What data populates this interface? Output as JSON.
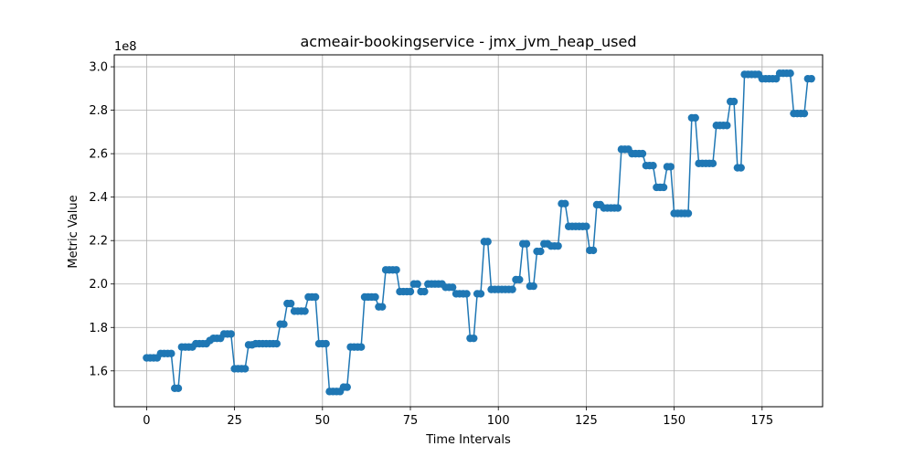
{
  "chart_data": {
    "type": "line",
    "title": "acmeair-bookingservice - jmx_jvm_heap_used",
    "xlabel": "Time Intervals",
    "ylabel": "Metric Value",
    "y_scale_label": "1e8",
    "xlim": [
      -9.2,
      192.2
    ],
    "ylim": [
      1.435,
      3.055
    ],
    "x_ticks": [
      0,
      25,
      50,
      75,
      100,
      125,
      150,
      175
    ],
    "x_tick_labels": [
      "0",
      "25",
      "50",
      "75",
      "100",
      "125",
      "150",
      "175"
    ],
    "y_ticks": [
      1.6,
      1.8,
      2.0,
      2.2,
      2.4,
      2.6,
      2.8,
      3.0
    ],
    "y_tick_labels": [
      "1.6",
      "1.8",
      "2.0",
      "2.2",
      "2.4",
      "2.6",
      "2.8",
      "3.0"
    ],
    "grid": true,
    "series": [
      {
        "name": "jmx_jvm_heap_used",
        "color": "#1f77b4",
        "marker": "circle",
        "values": [
          1.66,
          1.66,
          1.66,
          1.66,
          1.68,
          1.68,
          1.68,
          1.68,
          1.52,
          1.52,
          1.71,
          1.71,
          1.71,
          1.71,
          1.725,
          1.725,
          1.725,
          1.725,
          1.74,
          1.75,
          1.75,
          1.75,
          1.77,
          1.77,
          1.77,
          1.61,
          1.61,
          1.61,
          1.61,
          1.72,
          1.72,
          1.725,
          1.725,
          1.725,
          1.725,
          1.725,
          1.725,
          1.725,
          1.815,
          1.815,
          1.91,
          1.91,
          1.875,
          1.875,
          1.875,
          1.875,
          1.94,
          1.94,
          1.94,
          1.725,
          1.725,
          1.725,
          1.505,
          1.505,
          1.505,
          1.505,
          1.525,
          1.525,
          1.71,
          1.71,
          1.71,
          1.71,
          1.94,
          1.94,
          1.94,
          1.94,
          1.895,
          1.895,
          2.065,
          2.065,
          2.065,
          2.065,
          1.965,
          1.965,
          1.965,
          1.965,
          2.0,
          2.0,
          1.965,
          1.965,
          2.0,
          2.0,
          2.0,
          2.0,
          2.0,
          1.985,
          1.985,
          1.985,
          1.955,
          1.955,
          1.955,
          1.955,
          1.75,
          1.75,
          1.955,
          1.955,
          2.195,
          2.195,
          1.975,
          1.975,
          1.975,
          1.975,
          1.975,
          1.975,
          1.975,
          2.02,
          2.02,
          2.185,
          2.185,
          1.99,
          1.99,
          2.15,
          2.15,
          2.185,
          2.185,
          2.175,
          2.175,
          2.175,
          2.37,
          2.37,
          2.265,
          2.265,
          2.265,
          2.265,
          2.265,
          2.265,
          2.155,
          2.155,
          2.365,
          2.365,
          2.35,
          2.35,
          2.35,
          2.35,
          2.35,
          2.62,
          2.62,
          2.62,
          2.6,
          2.6,
          2.6,
          2.6,
          2.545,
          2.545,
          2.545,
          2.445,
          2.445,
          2.445,
          2.54,
          2.54,
          2.325,
          2.325,
          2.325,
          2.325,
          2.325,
          2.765,
          2.765,
          2.555,
          2.555,
          2.555,
          2.555,
          2.555,
          2.73,
          2.73,
          2.73,
          2.73,
          2.84,
          2.84,
          2.535,
          2.535,
          2.965,
          2.965,
          2.965,
          2.965,
          2.965,
          2.945,
          2.945,
          2.945,
          2.945,
          2.945,
          2.97,
          2.97,
          2.97,
          2.97,
          2.785,
          2.785,
          2.785,
          2.785,
          2.945,
          2.945
        ]
      }
    ]
  }
}
